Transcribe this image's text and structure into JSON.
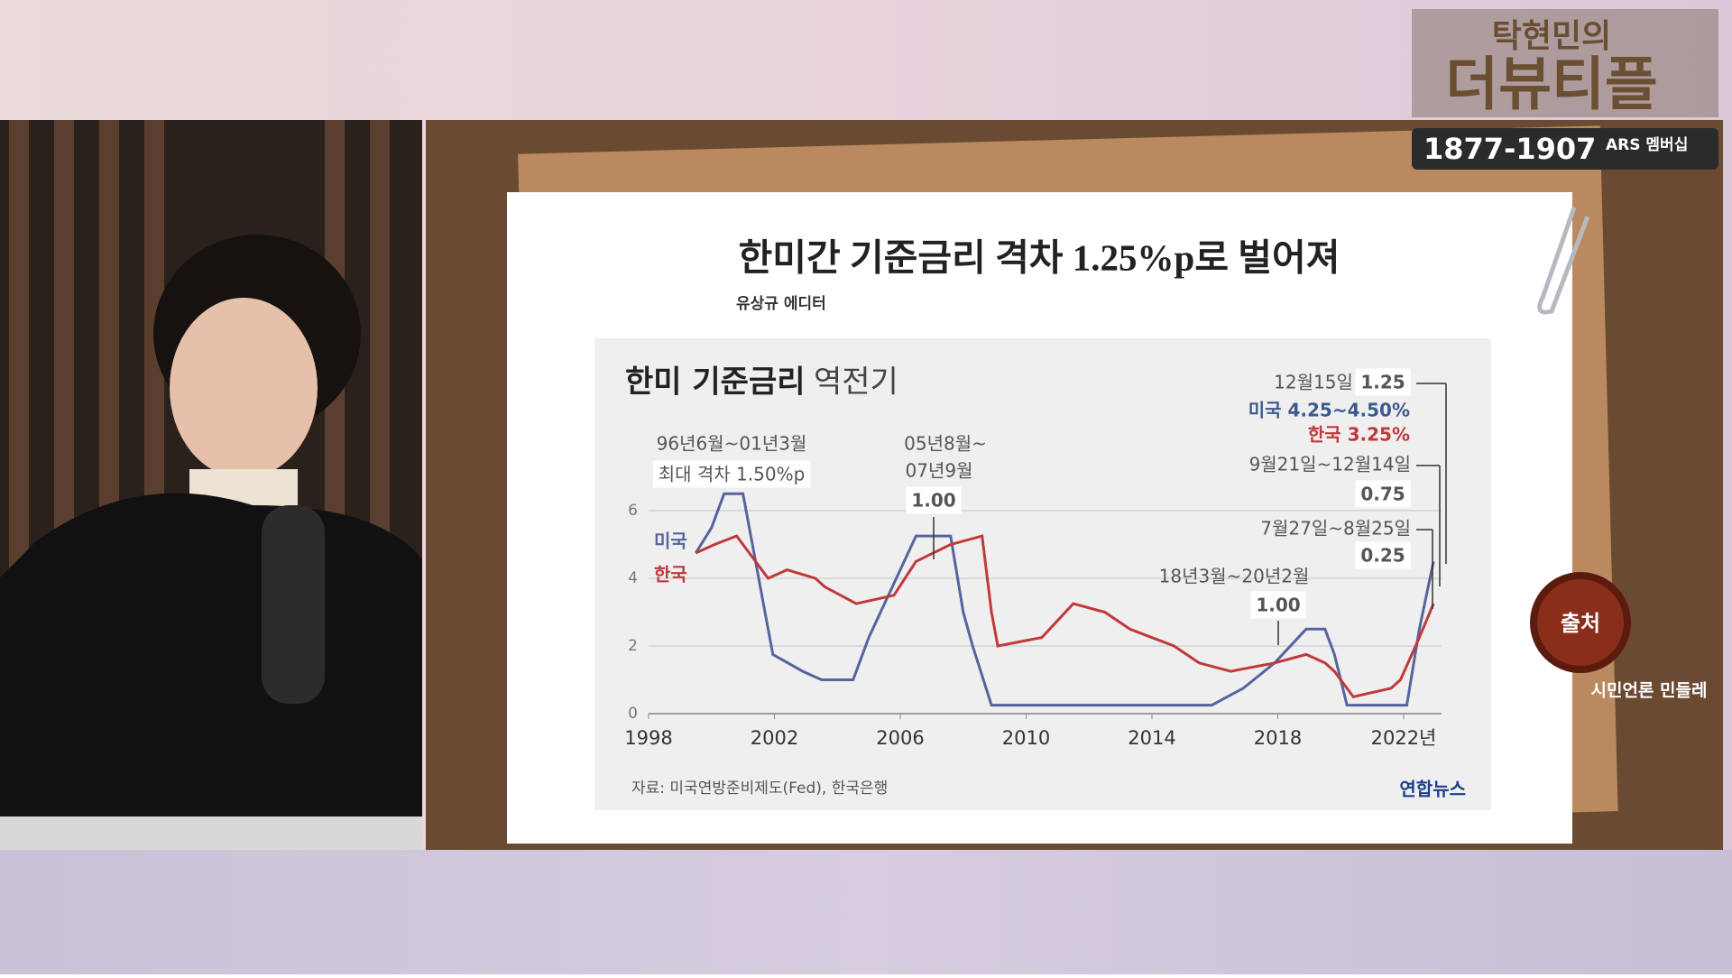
{
  "overlay": {
    "show_title": "탁현민의",
    "show_name": "더뷰티플",
    "phone": "1877-1907",
    "phone_note": "ARS 멤버십",
    "source_badge": "출처",
    "source_name": "시민언론 민들레"
  },
  "card": {
    "headline": "한미간 기준금리 격차 1.25%p로 벌어져",
    "editor": "유상규 에디터"
  },
  "chart_data": {
    "type": "line",
    "title": "한미 기준금리",
    "subtitle": "역전기",
    "source": "자료: 미국연방준비제도(Fed), 한국은행",
    "logo": "연합뉴스",
    "xlim": [
      1998,
      2023.2
    ],
    "ylim": [
      0,
      6.5
    ],
    "xticks": [
      1998,
      2002,
      2006,
      2010,
      2014,
      2018,
      {
        "value": 2022,
        "label": "2022년"
      }
    ],
    "yticks": [
      0,
      2,
      4,
      6
    ],
    "grid": true,
    "series": [
      {
        "name": "미국",
        "color": "#56649e",
        "x": [
          1999.5,
          2000.0,
          2000.4,
          2001.0,
          2001.3,
          2001.7,
          2001.95,
          2002.9,
          2003.5,
          2004.5,
          2005.0,
          2006.5,
          2007.6,
          2008.0,
          2008.3,
          2008.9,
          2015.9,
          2016.9,
          2017.9,
          2018.9,
          2019.5,
          2019.8,
          2020.2,
          2022.1,
          2022.5,
          2022.95
        ],
        "values": [
          4.75,
          5.5,
          6.5,
          6.5,
          5.0,
          3.0,
          1.75,
          1.25,
          1.0,
          1.0,
          2.25,
          5.25,
          5.25,
          3.0,
          2.0,
          0.25,
          0.25,
          0.75,
          1.5,
          2.5,
          2.5,
          1.75,
          0.25,
          0.25,
          2.5,
          4.5
        ]
      },
      {
        "name": "한국",
        "color": "#c0393b",
        "x": [
          1999.5,
          2000.1,
          2000.8,
          2001.0,
          2001.8,
          2002.4,
          2003.3,
          2003.6,
          2004.6,
          2005.8,
          2006.5,
          2007.6,
          2008.6,
          2008.9,
          2009.1,
          2010.5,
          2011.5,
          2012.5,
          2013.3,
          2014.7,
          2015.5,
          2016.5,
          2017.9,
          2018.9,
          2019.5,
          2019.8,
          2020.2,
          2020.4,
          2021.6,
          2021.9,
          2022.5,
          2022.95
        ],
        "values": [
          4.75,
          5.0,
          5.25,
          5.0,
          4.0,
          4.25,
          4.0,
          3.75,
          3.25,
          3.5,
          4.5,
          5.0,
          5.25,
          3.0,
          2.0,
          2.25,
          3.25,
          3.0,
          2.5,
          2.0,
          1.5,
          1.25,
          1.5,
          1.75,
          1.5,
          1.25,
          0.75,
          0.5,
          0.75,
          1.0,
          2.25,
          3.25
        ]
      }
    ],
    "annotations": [
      "96년6월~01년3월",
      "최대 격차 1.50%p",
      "05년8월~",
      "07년9월",
      "1.00",
      "18년3월~20년2월",
      "1.00",
      "12월15일",
      "1.25",
      "미국 4.25~4.50%",
      "한국 3.25%",
      "9월21일~12월14일",
      "0.75",
      "7월27일~8월25일",
      "0.25"
    ]
  }
}
